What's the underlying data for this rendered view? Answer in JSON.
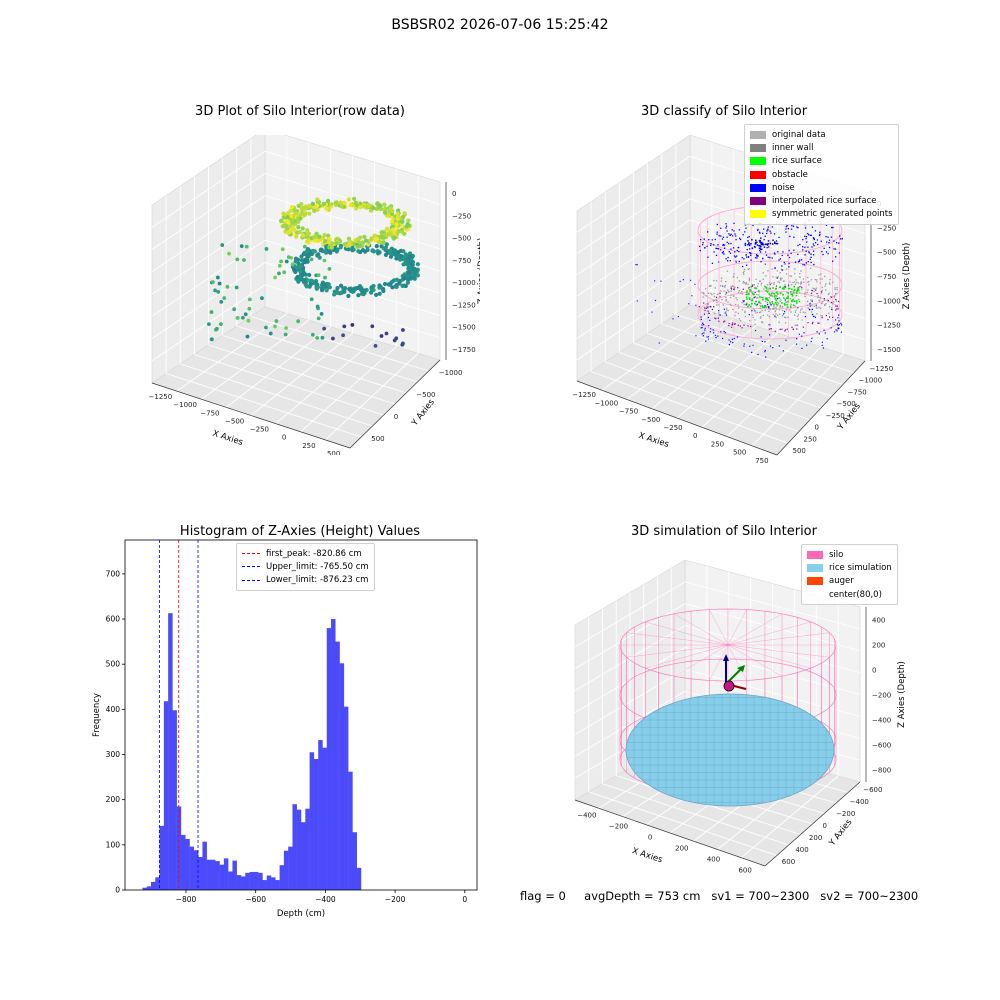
{
  "figure": {
    "suptitle": "BSBSR02 2026-07-06 15:25:42",
    "status": {
      "flag": "flag = 0",
      "avg_depth": "avgDepth = 753 cm",
      "sv1": "sv1 = 700~2300",
      "sv2": "sv2 = 700~2300"
    }
  },
  "chart_data": [
    {
      "type": "scatter3d",
      "title": "3D Plot of Silo Interior(row data)",
      "xlabel": "X Axies",
      "ylabel": "Y Axies",
      "zlabel": "Z Axies (Depth)",
      "x_ticks": [
        "−1250",
        "−1000",
        "−750",
        "−500",
        "−250",
        "0",
        "250",
        "500"
      ],
      "y_ticks": [
        "−1000",
        "−500",
        "0",
        "500"
      ],
      "z_ticks": [
        "0",
        "−250",
        "−500",
        "−750",
        "−1000",
        "−1250",
        "−1500",
        "−1750"
      ],
      "colormap": "viridis",
      "clusters": [
        {
          "shape": "ring",
          "cx": -100,
          "cy": 0,
          "z": -250,
          "r": 650,
          "count": 300
        },
        {
          "shape": "ring",
          "cx": -100,
          "cy": 0,
          "z": -1150,
          "r": 650,
          "count": 300
        },
        {
          "shape": "scatter",
          "x": [
            -1250,
            -250
          ],
          "y": [
            -900,
            300
          ],
          "z": [
            -1700,
            -700
          ],
          "count": 80
        }
      ]
    },
    {
      "type": "scatter3d",
      "title": "3D classify of Silo Interior",
      "xlabel": "X Axies",
      "ylabel": "Y Axies",
      "zlabel": "Z Axies (Depth)",
      "x_ticks": [
        "−1250",
        "−1000",
        "−750",
        "−500",
        "−250",
        "0",
        "250",
        "500",
        "750"
      ],
      "y_ticks": [
        "−1250",
        "−1000",
        "−750",
        "−500",
        "−250",
        "0",
        "250",
        "500"
      ],
      "z_ticks": [
        "0",
        "−250",
        "−500",
        "−750",
        "−1000",
        "−1250",
        "−1500"
      ],
      "legend": [
        {
          "label": "original data",
          "color": "#b0b0b0"
        },
        {
          "label": "inner wall",
          "color": "#808080"
        },
        {
          "label": "rice surface",
          "color": "#00ff00"
        },
        {
          "label": "obstacle",
          "color": "#ff0000"
        },
        {
          "label": "noise",
          "color": "#0000ff"
        },
        {
          "label": "interpolated rice surface",
          "color": "#800080"
        },
        {
          "label": "symmetric generated points",
          "color": "#ffff00"
        }
      ]
    },
    {
      "type": "bar",
      "title": "Histogram of Z-Axies (Height) Values",
      "xlabel": "Depth (cm)",
      "ylabel": "Frequency",
      "bar_color": "#4b4bfa",
      "bin_width": 12.3,
      "bin_start": -925,
      "values": [
        5,
        8,
        18,
        28,
        142,
        418,
        613,
        398,
        185,
        122,
        113,
        96,
        88,
        73,
        107,
        67,
        67,
        64,
        56,
        70,
        41,
        65,
        33,
        30,
        38,
        40,
        40,
        38,
        22,
        32,
        28,
        22,
        55,
        87,
        96,
        190,
        178,
        150,
        180,
        305,
        290,
        332,
        315,
        580,
        600,
        550,
        502,
        406,
        262,
        128,
        49
      ],
      "xlim": [
        -975,
        35
      ],
      "ylim": [
        0,
        775
      ],
      "x_ticks": [
        -800,
        -600,
        -400,
        -200,
        0
      ],
      "x_tick_labels": [
        "−800",
        "−600",
        "−400",
        "−200",
        "0"
      ],
      "y_ticks": [
        0,
        100,
        200,
        300,
        400,
        500,
        600,
        700
      ],
      "y_tick_labels": [
        "0",
        "100",
        "200",
        "300",
        "400",
        "500",
        "600",
        "700"
      ],
      "vlines": [
        {
          "x": -820.86,
          "color": "#ff0000",
          "label": "first_peak: -820.86 cm"
        },
        {
          "x": -765.5,
          "color": "#0000ff",
          "label": "Upper_limit: -765.50 cm"
        },
        {
          "x": -876.23,
          "color": "#0000ff",
          "label": "Lower_limit: -876.23 cm"
        }
      ]
    },
    {
      "type": "surface3d",
      "title": "3D simulation of Silo Interior",
      "xlabel": "X Axies",
      "ylabel": "Y Axies",
      "zlabel": "Z Axies (Depth)",
      "x_ticks": [
        "−400",
        "−200",
        "0",
        "200",
        "400",
        "600"
      ],
      "y_ticks": [
        "−600",
        "−400",
        "−200",
        "0",
        "200",
        "400",
        "600"
      ],
      "z_ticks": [
        "400",
        "200",
        "0",
        "−200",
        "−400",
        "−600",
        "−800"
      ],
      "legend": [
        {
          "label": "silo",
          "color": "#ff69b4"
        },
        {
          "label": "rice simulation",
          "color": "#87ceeb"
        },
        {
          "label": "auger",
          "color": "#ff4500"
        },
        {
          "label": "center(80,0)",
          "color": "none"
        }
      ]
    }
  ]
}
